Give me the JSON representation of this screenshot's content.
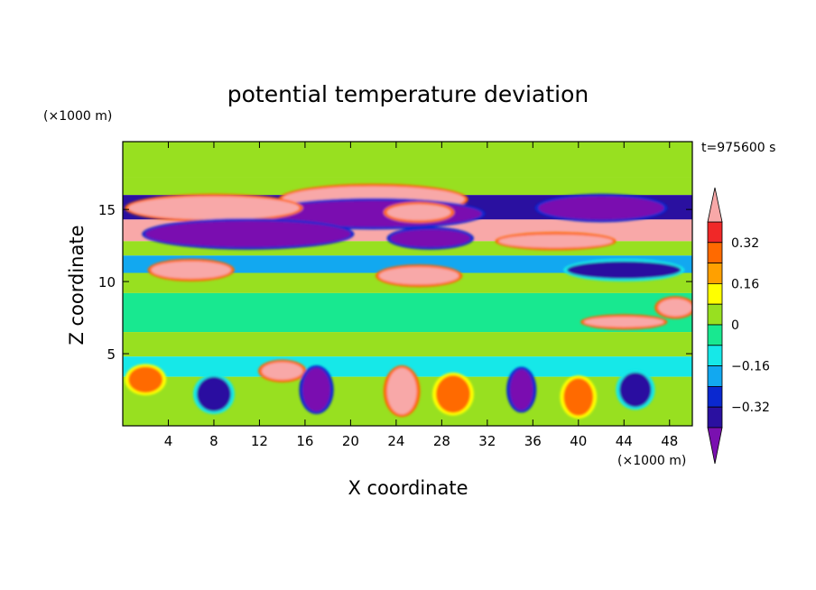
{
  "chart_data": {
    "type": "heatmap",
    "title": "potential temperature deviation",
    "xlabel": "X coordinate",
    "ylabel": "Z coordinate",
    "x_unit_label": "(×1000 m)",
    "y_unit_label": "(×1000 m)",
    "time_label": "t=975600 s",
    "xlim": [
      0,
      50
    ],
    "ylim": [
      0,
      19.7
    ],
    "x_ticks": [
      4,
      8,
      12,
      16,
      20,
      24,
      28,
      32,
      36,
      40,
      44,
      48
    ],
    "y_ticks": [
      5,
      10,
      15
    ],
    "colorbar": {
      "levels": [
        -0.4,
        -0.32,
        -0.24,
        -0.16,
        -0.08,
        0,
        0.08,
        0.16,
        0.24,
        0.32,
        0.4
      ],
      "labels": [
        "0.32",
        "0.16",
        "0",
        "−0.16",
        "−0.32"
      ],
      "label_values": [
        0.32,
        0.16,
        0,
        -0.16,
        -0.32
      ],
      "colors": [
        "#7a10b0",
        "#2a10a0",
        "#0a28d0",
        "#12a8f0",
        "#16e8e8",
        "#18e890",
        "#98e020",
        "#ffff00",
        "#ffa000",
        "#ff6a00",
        "#f02828",
        "#f8a8a8"
      ],
      "extend": "both"
    },
    "bands": [
      {
        "z": [
          19.7,
          17.2
        ],
        "value": 0.07
      },
      {
        "z": [
          17.2,
          16.0
        ],
        "value": 0.0
      },
      {
        "z": [
          16.0,
          14.3
        ],
        "value": -0.36
      },
      {
        "z": [
          14.3,
          12.8
        ],
        "value": 0.45
      },
      {
        "z": [
          12.8,
          11.8
        ],
        "value": 0.0
      },
      {
        "z": [
          11.8,
          10.6
        ],
        "value": -0.2
      },
      {
        "z": [
          10.6,
          9.2
        ],
        "value": 0.02
      },
      {
        "z": [
          9.2,
          6.5
        ],
        "value": -0.04
      },
      {
        "z": [
          6.5,
          4.8
        ],
        "value": 0.06
      },
      {
        "z": [
          4.8,
          3.4
        ],
        "value": -0.1
      },
      {
        "z": [
          3.4,
          0
        ],
        "value": 0.05
      }
    ],
    "features": [
      {
        "type": "ellipse",
        "x": 22,
        "z": 15.7,
        "rx": 8,
        "rz": 0.9,
        "value": 0.45
      },
      {
        "type": "ellipse",
        "x": 22,
        "z": 14.7,
        "rx": 9.5,
        "rz": 0.9,
        "value": -0.45
      },
      {
        "type": "ellipse",
        "x": 8,
        "z": 15.1,
        "rx": 7.5,
        "rz": 0.8,
        "value": 0.45
      },
      {
        "type": "ellipse",
        "x": 11,
        "z": 13.3,
        "rx": 9,
        "rz": 0.9,
        "value": -0.45
      },
      {
        "type": "ellipse",
        "x": 26,
        "z": 14.8,
        "rx": 2.8,
        "rz": 0.55,
        "value": 0.45
      },
      {
        "type": "ellipse",
        "x": 42,
        "z": 15.1,
        "rx": 5.5,
        "rz": 0.8,
        "value": -0.45
      },
      {
        "type": "ellipse",
        "x": 27,
        "z": 13,
        "rx": 3.5,
        "rz": 0.6,
        "value": -0.45
      },
      {
        "type": "ellipse",
        "x": 38,
        "z": 12.8,
        "rx": 5,
        "rz": 0.45,
        "value": 0.45
      },
      {
        "type": "ellipse",
        "x": 44,
        "z": 10.8,
        "rx": 5,
        "rz": 0.6,
        "value": -0.36
      },
      {
        "type": "ellipse",
        "x": 26,
        "z": 10.4,
        "rx": 3.5,
        "rz": 0.6,
        "value": 0.45
      },
      {
        "type": "ellipse",
        "x": 6,
        "z": 10.8,
        "rx": 3.5,
        "rz": 0.6,
        "value": 0.45
      },
      {
        "type": "ellipse",
        "x": 44,
        "z": 7.2,
        "rx": 3.5,
        "rz": 0.35,
        "value": 0.45
      },
      {
        "type": "ellipse",
        "x": 48.5,
        "z": 8.2,
        "rx": 1.5,
        "rz": 0.6,
        "value": 0.45
      },
      {
        "type": "ellipse",
        "x": 24.5,
        "z": 2.4,
        "rx": 1.3,
        "rz": 1.6,
        "value": 0.45
      },
      {
        "type": "ellipse",
        "x": 14,
        "z": 3.8,
        "rx": 1.8,
        "rz": 0.6,
        "value": 0.45
      },
      {
        "type": "ellipse",
        "x": 17,
        "z": 2.5,
        "rx": 1.2,
        "rz": 1.5,
        "value": -0.45
      },
      {
        "type": "ellipse",
        "x": 35,
        "z": 2.5,
        "rx": 1,
        "rz": 1.4,
        "value": -0.45
      },
      {
        "type": "ellipse",
        "x": 8,
        "z": 2.2,
        "rx": 1.5,
        "rz": 1.2,
        "value": -0.36
      },
      {
        "type": "ellipse",
        "x": 45,
        "z": 2.5,
        "rx": 1.4,
        "rz": 1.2,
        "value": -0.36
      },
      {
        "type": "ellipse",
        "x": 2,
        "z": 3.2,
        "rx": 1.5,
        "rz": 0.9,
        "value": 0.3
      },
      {
        "type": "ellipse",
        "x": 29,
        "z": 2.2,
        "rx": 1.5,
        "rz": 1.3,
        "value": 0.3
      },
      {
        "type": "ellipse",
        "x": 40,
        "z": 2,
        "rx": 1.3,
        "rz": 1.3,
        "value": 0.3
      }
    ]
  }
}
